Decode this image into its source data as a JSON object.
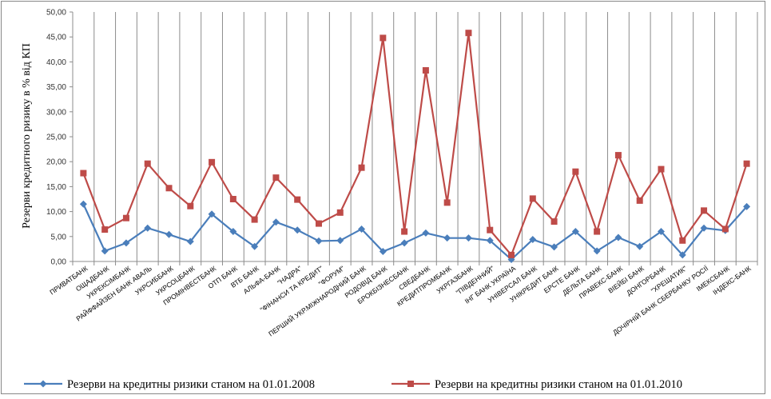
{
  "chart_data": {
    "type": "line",
    "title": "",
    "xlabel": "",
    "ylabel": "Резерви кредитного ризику в % від КП",
    "ylim": [
      0,
      50
    ],
    "ytick_step": 5,
    "grid": "vertical",
    "legend_position": "bottom",
    "categories": [
      "ПРИВАТБАНК",
      "ОЩАДБАНК",
      "УКРЕКСІМБАНК",
      "РАЙФФАЙЗЕН БАНК АВАЛЬ",
      "УКРСИББАНК",
      "УКРСОЦБАНК",
      "ПРОМІНВЕСТБАНК",
      "ОТП БАНК",
      "ВТБ БАНК",
      "АЛЬФА-БАНК",
      "\"НАДРА\"",
      "\"ФІНАНСИ ТА КРЕДИТ\"",
      "\"ФОРУМ\"",
      "ПЕРШИЙ УКР.МІЖНАРОДНИЙ  БАНК",
      "РОДОВІД БАНК",
      "БРОКБІЗНЕСБАНК",
      "СВЕДБАНК",
      "КРЕДИТПРОМБАНК",
      "УКРГАЗБАНК",
      "\"ПІВДЕННИЙ\"",
      "ІНГ БАНК УКРАЇНА",
      "УНІВЕРСАЛ БАНК",
      "УНІКРЕДИТ  БАНК",
      "ЕРСТЕ БАНК",
      "ДЕЛЬТА  БАНК",
      "ПРАВЕКС-БАНК",
      "ВІЕЙБІ БАНК",
      "ДОНГОРБАНК",
      "\"ХРЕЩАТИК\"",
      "ДОЧІРНІЙ БАНК СБЕРБАНКУ РОСІЇ",
      "ІМЕКСБАНК",
      "ІНДЕКС-БАНК"
    ],
    "series": [
      {
        "name": "Резерви на кредитны ризики станом на 01.01.2008",
        "color": "#4A7EBB",
        "marker": "diamond",
        "values": [
          11.5,
          2.1,
          3.7,
          6.7,
          5.4,
          4.0,
          9.5,
          6.0,
          3.0,
          7.9,
          6.3,
          4.1,
          4.2,
          6.5,
          2.0,
          3.7,
          5.7,
          4.7,
          4.7,
          4.2,
          0.4,
          4.4,
          2.9,
          6.0,
          2.1,
          4.8,
          3.0,
          6.0,
          1.3,
          6.7,
          6.2,
          11.0
        ]
      },
      {
        "name": "Резерви на кредитны ризики станом на 01.01.2010",
        "color": "#BE4B48",
        "marker": "square",
        "values": [
          17.7,
          6.4,
          8.7,
          19.6,
          14.7,
          11.1,
          19.9,
          12.5,
          8.4,
          16.8,
          12.4,
          7.6,
          9.8,
          18.8,
          44.8,
          6.0,
          38.3,
          11.8,
          45.8,
          6.3,
          1.3,
          12.6,
          8.0,
          18.0,
          6.0,
          21.3,
          12.2,
          18.5,
          4.2,
          10.2,
          6.5,
          19.6
        ]
      }
    ]
  }
}
